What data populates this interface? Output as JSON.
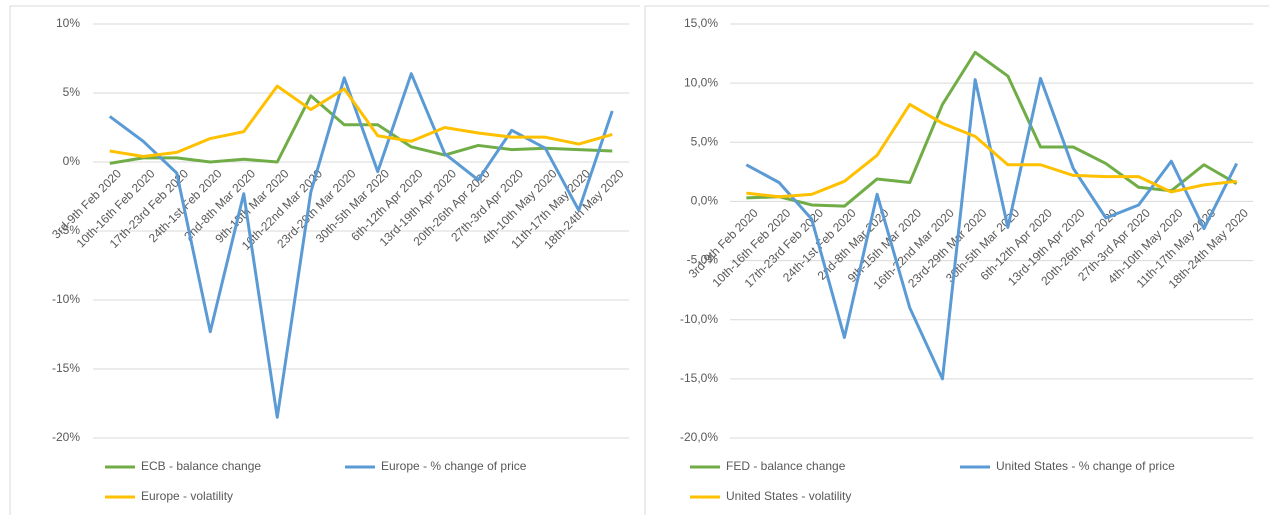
{
  "chart_data": [
    {
      "type": "line",
      "categories": [
        "3rd-9th Feb 2020",
        "10th-16th Feb 2020",
        "17th-23rd Feb 2020",
        "24th-1st Feb 2020",
        "2nd-8th Mar 2020",
        "9th-15th Mar 2020",
        "16th-22nd Mar 2020",
        "23rd-29th Mar 2020",
        "30th-5th Mar 2020",
        "6th-12th Apr 2020",
        "13rd-19th Apr 2020",
        "20th-26th Apr 2020",
        "27th-3rd Apr 2020",
        "4th-10th May 2020",
        "11th-17th May 2020",
        "18th-24th May 2020"
      ],
      "series": [
        {
          "name": "ECB - balance change",
          "color": "#70ad47",
          "values": [
            -0.1,
            0.3,
            0.3,
            0.0,
            0.2,
            0.0,
            4.8,
            2.7,
            2.7,
            1.1,
            0.5,
            1.2,
            0.9,
            1.0,
            0.9,
            0.8
          ]
        },
        {
          "name": "Europe - % change of price",
          "color": "#5b9bd5",
          "values": [
            3.3,
            1.5,
            -0.8,
            -12.3,
            -2.3,
            -18.5,
            -2.2,
            6.1,
            -0.7,
            6.4,
            0.6,
            -1.3,
            2.3,
            1.0,
            -3.5,
            3.7
          ]
        },
        {
          "name": "Europe - volatility",
          "color": "#ffc000",
          "values": [
            0.8,
            0.4,
            0.7,
            1.7,
            2.2,
            5.5,
            3.8,
            5.3,
            1.9,
            1.5,
            2.5,
            2.1,
            1.8,
            1.8,
            1.3,
            2.0
          ]
        }
      ],
      "ylim": [
        -20,
        10
      ],
      "yticks": [
        {
          "value": -20,
          "label": "-20%"
        },
        {
          "value": -15,
          "label": "-15%"
        },
        {
          "value": -10,
          "label": "-10%"
        },
        {
          "value": -5,
          "label": "-5%"
        },
        {
          "value": 0,
          "label": "0%"
        },
        {
          "value": 5,
          "label": "5%"
        },
        {
          "value": 10,
          "label": "10%"
        }
      ],
      "grid": true,
      "legend": "bottom"
    },
    {
      "type": "line",
      "categories": [
        "3rd-9th Feb 2020",
        "10th-16th Feb 2020",
        "17th-23rd Feb 2020",
        "24th-1st Feb 2020",
        "2nd-8th Mar 2020",
        "9th-15th Mar 2020",
        "16th-22nd Mar 2020",
        "23rd-29th Mar 2020",
        "30th-5th Mar 2020",
        "6th-12th Apr 2020",
        "13rd-19th Apr 2020",
        "20th-26th Apr 2020",
        "27th-3rd Apr 2020",
        "4th-10th May 2020",
        "11th-17th May 2020",
        "18th-24th May 2020"
      ],
      "series": [
        {
          "name": "FED - balance change",
          "color": "#70ad47",
          "values": [
            0.3,
            0.4,
            -0.3,
            -0.4,
            1.9,
            1.6,
            8.2,
            12.6,
            10.6,
            4.6,
            4.6,
            3.2,
            1.2,
            0.9,
            3.1,
            1.5
          ]
        },
        {
          "name": "United States - % change of price",
          "color": "#5b9bd5",
          "values": [
            3.1,
            1.6,
            -1.5,
            -11.5,
            0.6,
            -9.0,
            -15.0,
            10.3,
            -2.2,
            10.4,
            2.8,
            -1.4,
            -0.3,
            3.4,
            -2.3,
            3.2
          ]
        },
        {
          "name": "United States - volatility",
          "color": "#ffc000",
          "values": [
            0.7,
            0.4,
            0.6,
            1.7,
            3.9,
            8.2,
            6.6,
            5.5,
            3.1,
            3.1,
            2.2,
            2.1,
            2.1,
            0.8,
            1.4,
            1.7
          ]
        }
      ],
      "ylim": [
        -20,
        15
      ],
      "yticks": [
        {
          "value": -20,
          "label": "-20,0%"
        },
        {
          "value": -15,
          "label": "-15,0%"
        },
        {
          "value": -10,
          "label": "-10,0%"
        },
        {
          "value": -5,
          "label": "-5,0%"
        },
        {
          "value": 0,
          "label": "0,0%"
        },
        {
          "value": 5,
          "label": "5,0%"
        },
        {
          "value": 10,
          "label": "10,0%"
        },
        {
          "value": 15,
          "label": "15,0%"
        }
      ],
      "grid": true,
      "legend": "bottom"
    }
  ]
}
